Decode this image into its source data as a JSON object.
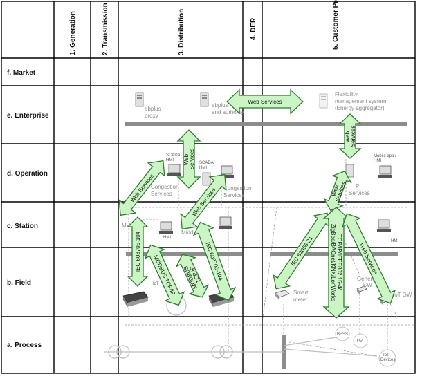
{
  "columns": [
    "1. Generation",
    "2. Transmission",
    "3. Distribution",
    "4. DER",
    "5. Customer Premises"
  ],
  "rows": [
    "f. Market",
    "e. Enterprise",
    "d. Operation",
    "c. Station",
    "b. Field",
    "a. Process"
  ],
  "components": {
    "ebplus_proxy": "ebplus\nproxy",
    "ebplus_authority": "ebplus\nand authority",
    "flexibility_system": "Flexibility\nmanagement system\n(Energy aggregator)",
    "scada_hmi_1": "SCADA/\nHMI",
    "scada_hmi_2": "SCADA/\nHMI",
    "congestion_1": "Congestion\nServices",
    "congestion_2": "Congestion\nServices",
    "mobile_app": "Mobile app /\nHMI",
    "hmi_station": "HMI",
    "hmi_customer": "HMI",
    "mv_station": "MV",
    "lv_station": "LV\nMiddle",
    "iot_field": "IoT",
    "smart_meter": "Smart\nmeter",
    "general_gw": "General\nGW",
    "iot_gw": "IoT GW",
    "bess": "BESS",
    "pv": "PV",
    "iot_devices": "IoT\nDevices",
    "p_services": "P\nServices"
  },
  "protocols": {
    "web_services_enterprise": "Web Services",
    "web_services_cust_vertical": "Web\nServices",
    "web_services_dist_vertical": "Web\nServices",
    "web_services_dist_diag1": "Web Services",
    "web_services_dist_diag2": "Web Services",
    "web_services_cust_diag": "Web\nServices",
    "web_services_cust_field": "Web Services",
    "iec_104_left": "IEC 608705-104",
    "modbus_1": "MODBUS TCP/IP",
    "modbus_2": "MODBUS\nTCP/IP",
    "iec_104_right": "IEC 608705-104",
    "iec_61850": "IEC 62056-21",
    "tcp_zigbee": "TCP/IP/IEEE802.15-4/\nZigBee/BACnet/KNX/LonWorks"
  }
}
